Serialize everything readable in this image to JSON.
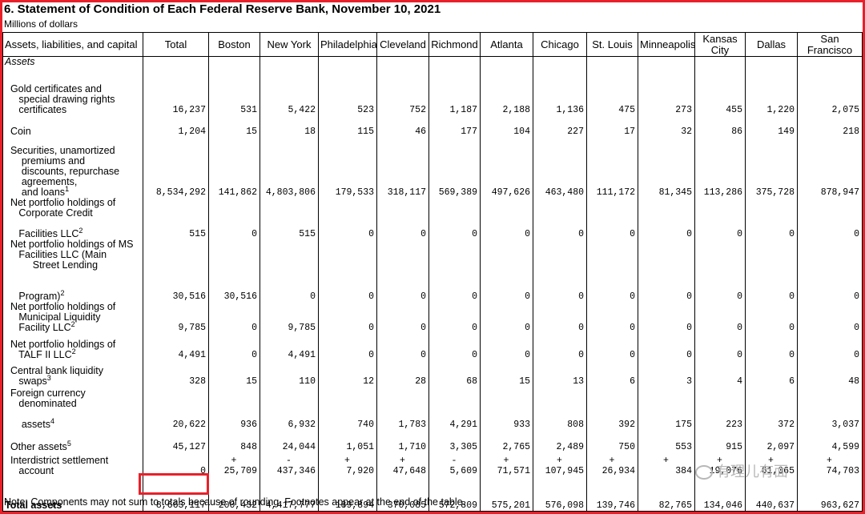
{
  "title": "6. Statement of Condition of Each Federal Reserve Bank, November 10, 2021",
  "subtitle": "Millions of dollars",
  "headers": [
    "Assets, liabilities, and capital",
    "Total",
    "Boston",
    "New York",
    "Philadelphia",
    "Cleveland",
    "Richmond",
    "Atlanta",
    "Chicago",
    "St. Louis",
    "Minneapolis",
    "Kansas\nCity",
    "Dallas",
    "San\nFrancisco"
  ],
  "section_label": "Assets",
  "rows": [
    {
      "label": "  Gold certificates and\n     special drawing rights\n     certificates",
      "sup": "",
      "values": [
        "16,237",
        "531",
        "5,422",
        "523",
        "752",
        "1,187",
        "2,188",
        "1,136",
        "475",
        "273",
        "455",
        "1,220",
        "2,075"
      ]
    },
    {
      "label": "  Coin",
      "sup": "",
      "values": [
        "1,204",
        "15",
        "18",
        "115",
        "46",
        "177",
        "104",
        "227",
        "17",
        "32",
        "86",
        "149",
        "218"
      ]
    },
    {
      "label": "  Securities, unamortized\n      premiums and\n      discounts, repurchase\n      agreements,\n      and loans",
      "sup": "1",
      "values": [
        "8,534,292",
        "141,862",
        "4,803,806",
        "179,533",
        "318,117",
        "569,389",
        "497,626",
        "463,480",
        "111,172",
        "81,345",
        "113,286",
        "375,728",
        "878,947"
      ]
    },
    {
      "label": "  Net portfolio holdings of\n     Corporate Credit\n\n     Facilities LLC",
      "sup": "2",
      "values": [
        "515",
        "0",
        "515",
        "0",
        "0",
        "0",
        "0",
        "0",
        "0",
        "0",
        "0",
        "0",
        "0"
      ]
    },
    {
      "label": "  Net portfolio holdings of MS\n     Facilities LLC (Main\n          Street Lending\n\n\n     Program)",
      "sup": "2",
      "values": [
        "30,516",
        "30,516",
        "0",
        "0",
        "0",
        "0",
        "0",
        "0",
        "0",
        "0",
        "0",
        "0",
        "0"
      ]
    },
    {
      "label": "  Net portfolio holdings of\n     Municipal Liquidity\n     Facility LLC",
      "sup": "2",
      "values": [
        "9,785",
        "0",
        "9,785",
        "0",
        "0",
        "0",
        "0",
        "0",
        "0",
        "0",
        "0",
        "0",
        "0"
      ]
    },
    {
      "label": "  Net portfolio holdings of\n     TALF II LLC",
      "sup": "2",
      "values": [
        "4,491",
        "0",
        "4,491",
        "0",
        "0",
        "0",
        "0",
        "0",
        "0",
        "0",
        "0",
        "0",
        "0"
      ]
    },
    {
      "label": "  Central bank liquidity\n     swaps",
      "sup": "3",
      "values": [
        "328",
        "15",
        "110",
        "12",
        "28",
        "68",
        "15",
        "13",
        "6",
        "3",
        "4",
        "6",
        "48"
      ]
    },
    {
      "label": "  Foreign currency\n     denominated\n\n      assets",
      "sup": "4",
      "values": [
        "20,622",
        "936",
        "6,932",
        "740",
        "1,783",
        "4,291",
        "933",
        "808",
        "392",
        "175",
        "223",
        "372",
        "3,037"
      ]
    },
    {
      "label": "  Other assets",
      "sup": "5",
      "values": [
        "45,127",
        "848",
        "24,044",
        "1,051",
        "1,710",
        "3,305",
        "2,765",
        "2,489",
        "750",
        "553",
        "915",
        "2,097",
        "4,599"
      ]
    },
    {
      "label": "  Interdistrict settlement\n     account",
      "sup": "",
      "values": [
        "0",
        "+\n25,709",
        "-\n437,346",
        "+\n7,920",
        "+\n47,648",
        "-\n5,609",
        "+\n71,571",
        "+\n107,945",
        "+\n26,934",
        "+\n384",
        "+\n19,076",
        "+\n61,065",
        "+\n74,703"
      ]
    },
    {
      "label": "\nTotal assets",
      "sup": "",
      "values": [
        "8,663,117",
        "200,432",
        "4,417,777",
        "189,894",
        "370,085",
        "572,809",
        "575,201",
        "576,098",
        "139,746",
        "82,765",
        "134,046",
        "440,637",
        "963,627"
      ]
    }
  ],
  "note": "Note: Components may not sum to totals because of rounding. Footnotes appear at the end of the table.",
  "watermark": "有理儿有面",
  "highlight_color": "#e8202a"
}
